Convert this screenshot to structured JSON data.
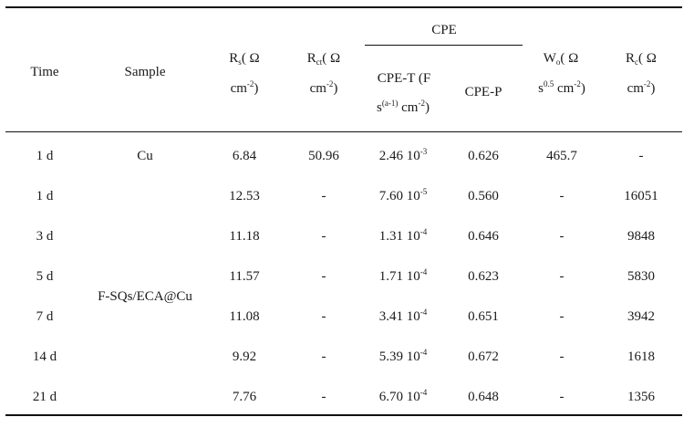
{
  "table": {
    "group_header": "CPE",
    "headers": {
      "time": "Time",
      "sample": "Sample",
      "rs": {
        "sym": "R",
        "sub": "s",
        "unit_open": "( Ω",
        "line2": "cm",
        "sup": "-2",
        "close": ")"
      },
      "rct": {
        "sym": "R",
        "sub": "ct",
        "unit_open": "( Ω",
        "line2": "cm",
        "sup": "-2",
        "close": ")"
      },
      "cpe_t": {
        "line1": "CPE-T (F",
        "line2_s": "s",
        "sup": "(a-1)",
        "line2_rest": " cm",
        "sup2": "-2",
        "close": ")"
      },
      "cpe_p": "CPE-P",
      "wo": {
        "sym": "W",
        "sub": "o",
        "unit_open": "( Ω",
        "line2_s": "s",
        "sup": "0.5",
        "line2_rest": " cm",
        "sup2": "-2",
        "close": ")"
      },
      "rc": {
        "sym": "R",
        "sub": "c",
        "unit_open": "( Ω",
        "line2": "cm",
        "sup": "-2",
        "close": ")"
      }
    },
    "samples": {
      "cu": "Cu",
      "fsq": "F-SQs/ECA@Cu"
    },
    "rows": [
      {
        "time": "1 d",
        "rs": "6.84",
        "rct": "50.96",
        "cpe_t_base": "2.46 10",
        "cpe_t_exp": "-3",
        "cpe_p": "0.626",
        "wo": "465.7",
        "rc": "-"
      },
      {
        "time": "1 d",
        "rs": "12.53",
        "rct": "-",
        "cpe_t_base": "7.60 10",
        "cpe_t_exp": "-5",
        "cpe_p": "0.560",
        "wo": "-",
        "rc": "16051"
      },
      {
        "time": "3 d",
        "rs": "11.18",
        "rct": "-",
        "cpe_t_base": "1.31 10",
        "cpe_t_exp": "-4",
        "cpe_p": "0.646",
        "wo": "-",
        "rc": "9848"
      },
      {
        "time": "5 d",
        "rs": "11.57",
        "rct": "-",
        "cpe_t_base": "1.71 10",
        "cpe_t_exp": "-4",
        "cpe_p": "0.623",
        "wo": "-",
        "rc": "5830"
      },
      {
        "time": "7 d",
        "rs": "11.08",
        "rct": "-",
        "cpe_t_base": "3.41 10",
        "cpe_t_exp": "-4",
        "cpe_p": "0.651",
        "wo": "-",
        "rc": "3942"
      },
      {
        "time": "14 d",
        "rs": "9.92",
        "rct": "-",
        "cpe_t_base": "5.39 10",
        "cpe_t_exp": "-4",
        "cpe_p": "0.672",
        "wo": "-",
        "rc": "1618"
      },
      {
        "time": "21 d",
        "rs": "7.76",
        "rct": "-",
        "cpe_t_base": "6.70 10",
        "cpe_t_exp": "-4",
        "cpe_p": "0.648",
        "wo": "-",
        "rc": "1356"
      }
    ]
  }
}
